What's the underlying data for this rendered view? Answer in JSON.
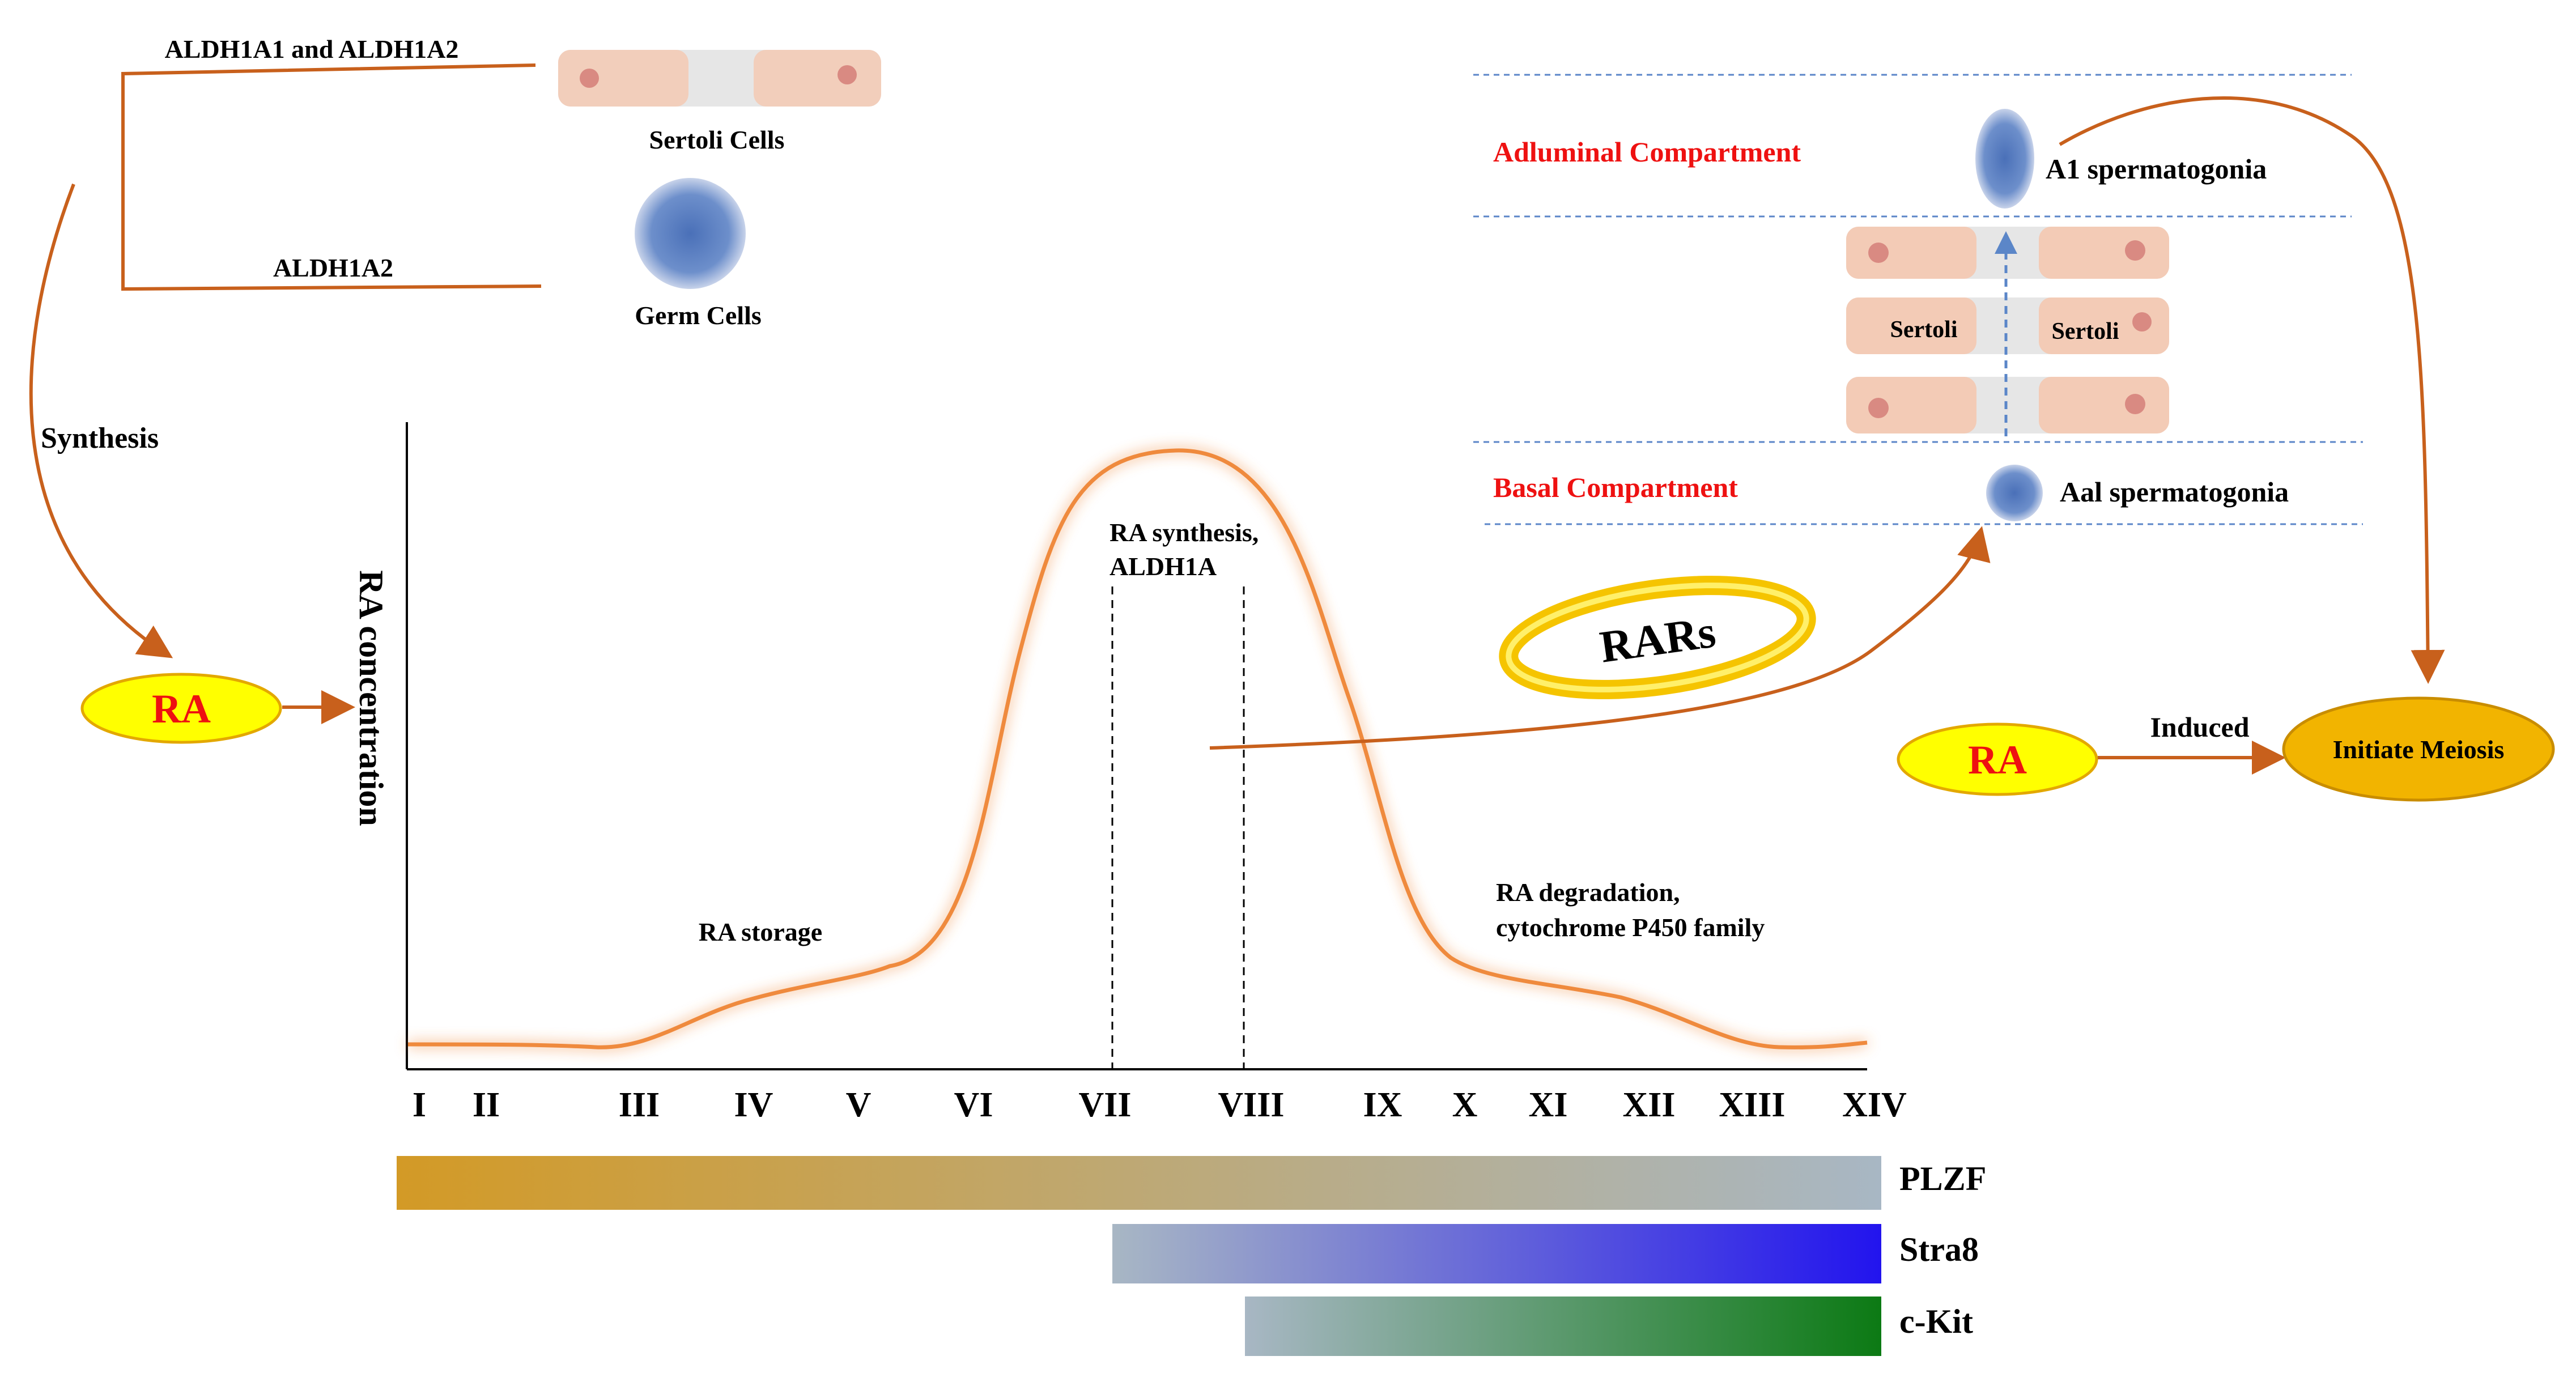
{
  "labels": {
    "aldh_a1_a2": "ALDH1A1 and ALDH1A2",
    "aldh_a2": "ALDH1A2",
    "sertoli_cells": "Sertoli Cells",
    "germ_cells": "Germ Cells",
    "synthesis": "Synthesis",
    "ra_left": "RA",
    "y_axis": "RA concentration",
    "ra_synthesis_1": "RA synthesis,",
    "ra_synthesis_2": "ALDH1A",
    "ra_storage": "RA storage",
    "ra_degradation_1": "RA degradation,",
    "ra_degradation_2": "cytochrome P450 family",
    "rars": "RARs",
    "adluminal": "Adluminal Compartment",
    "basal": "Basal Compartment",
    "a1_spermatogonia": "A1 spermatogonia",
    "aal_spermatogonia": "Aal spermatogonia",
    "sertoli_left": "Sertoli",
    "sertoli_right": "Sertoli",
    "ra_right": "RA",
    "induced": "Induced",
    "initiate_meiosis": "Initiate Meiosis"
  },
  "stages": [
    "I",
    "II",
    "III",
    "IV",
    "V",
    "VI",
    "VII",
    "VIII",
    "IX",
    "X",
    "XI",
    "XII",
    "XIII",
    "XIV"
  ],
  "bars": [
    {
      "label": "PLZF",
      "color_from": "#d39a26",
      "color_to": "#a8b7c4"
    },
    {
      "label": "Stra8",
      "color_from": "#a8b7c4",
      "color_to": "#2214ee"
    },
    {
      "label": "c-Kit",
      "color_from": "#a8b7c4",
      "color_to": "#0c7a14"
    }
  ],
  "colors": {
    "arrow": "#c8601c",
    "curve": "#ef8a3c",
    "compartment_text": "#ee1111",
    "ra_fill": "#ffff00",
    "meiosis_fill": "#f2b400",
    "dashed_line": "#5b86c8"
  }
}
